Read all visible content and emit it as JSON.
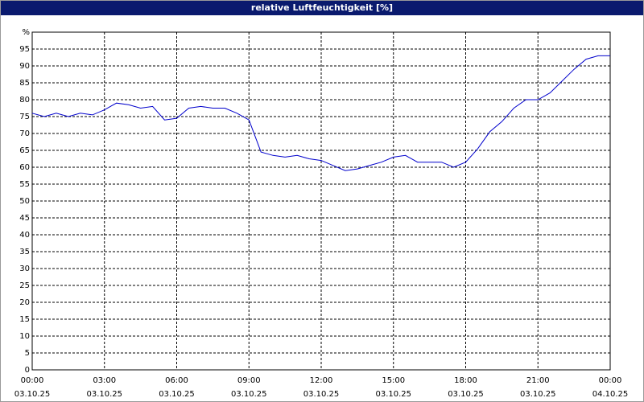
{
  "chart_data": {
    "type": "line",
    "title": "relative Luftfeuchtigkeit [%]",
    "x": [
      0,
      0.5,
      1,
      1.5,
      2,
      2.5,
      3,
      3.5,
      4,
      4.5,
      5,
      5.5,
      6,
      6.5,
      7,
      7.5,
      8,
      8.5,
      9,
      9.5,
      10,
      10.5,
      11,
      11.5,
      12,
      12.5,
      13,
      13.5,
      14,
      14.5,
      15,
      15.5,
      16,
      16.5,
      17,
      17.5,
      18,
      18.5,
      19,
      19.5,
      20,
      20.5,
      21,
      21.5,
      22,
      22.5,
      23,
      23.5,
      24
    ],
    "series": [
      {
        "name": "relative Luftfeuchtigkeit",
        "color": "#0000cc",
        "values": [
          76,
          75,
          76,
          75,
          76,
          75.5,
          77,
          79,
          78.5,
          77.5,
          78,
          74,
          74.5,
          77.5,
          78,
          77.5,
          77.5,
          76,
          74,
          64.5,
          63.5,
          63,
          63.5,
          62.5,
          62,
          60.5,
          59,
          59.5,
          60.5,
          61.5,
          63,
          63.5,
          61.5,
          61.5,
          61.5,
          60,
          61.5,
          65.5,
          70.5,
          73.5,
          77.5,
          80,
          80,
          82,
          85.5,
          89,
          92,
          93,
          93
        ]
      }
    ],
    "xlim": [
      0,
      24
    ],
    "xticks": [
      {
        "value": 0,
        "label": "00:00",
        "date": "03.10.25"
      },
      {
        "value": 3,
        "label": "03:00",
        "date": "03.10.25"
      },
      {
        "value": 6,
        "label": "06:00",
        "date": "03.10.25"
      },
      {
        "value": 9,
        "label": "09:00",
        "date": "03.10.25"
      },
      {
        "value": 12,
        "label": "12:00",
        "date": "03.10.25"
      },
      {
        "value": 15,
        "label": "15:00",
        "date": "03.10.25"
      },
      {
        "value": 18,
        "label": "18:00",
        "date": "03.10.25"
      },
      {
        "value": 21,
        "label": "21:00",
        "date": "03.10.25"
      },
      {
        "value": 24,
        "label": "00:00",
        "date": "04.10.25"
      }
    ],
    "ylim": [
      0,
      100
    ],
    "yticks": [
      0,
      5,
      10,
      15,
      20,
      25,
      30,
      35,
      40,
      45,
      50,
      55,
      60,
      65,
      70,
      75,
      80,
      85,
      90,
      95,
      {
        "value": 100,
        "label": "%"
      }
    ],
    "grid": true
  }
}
